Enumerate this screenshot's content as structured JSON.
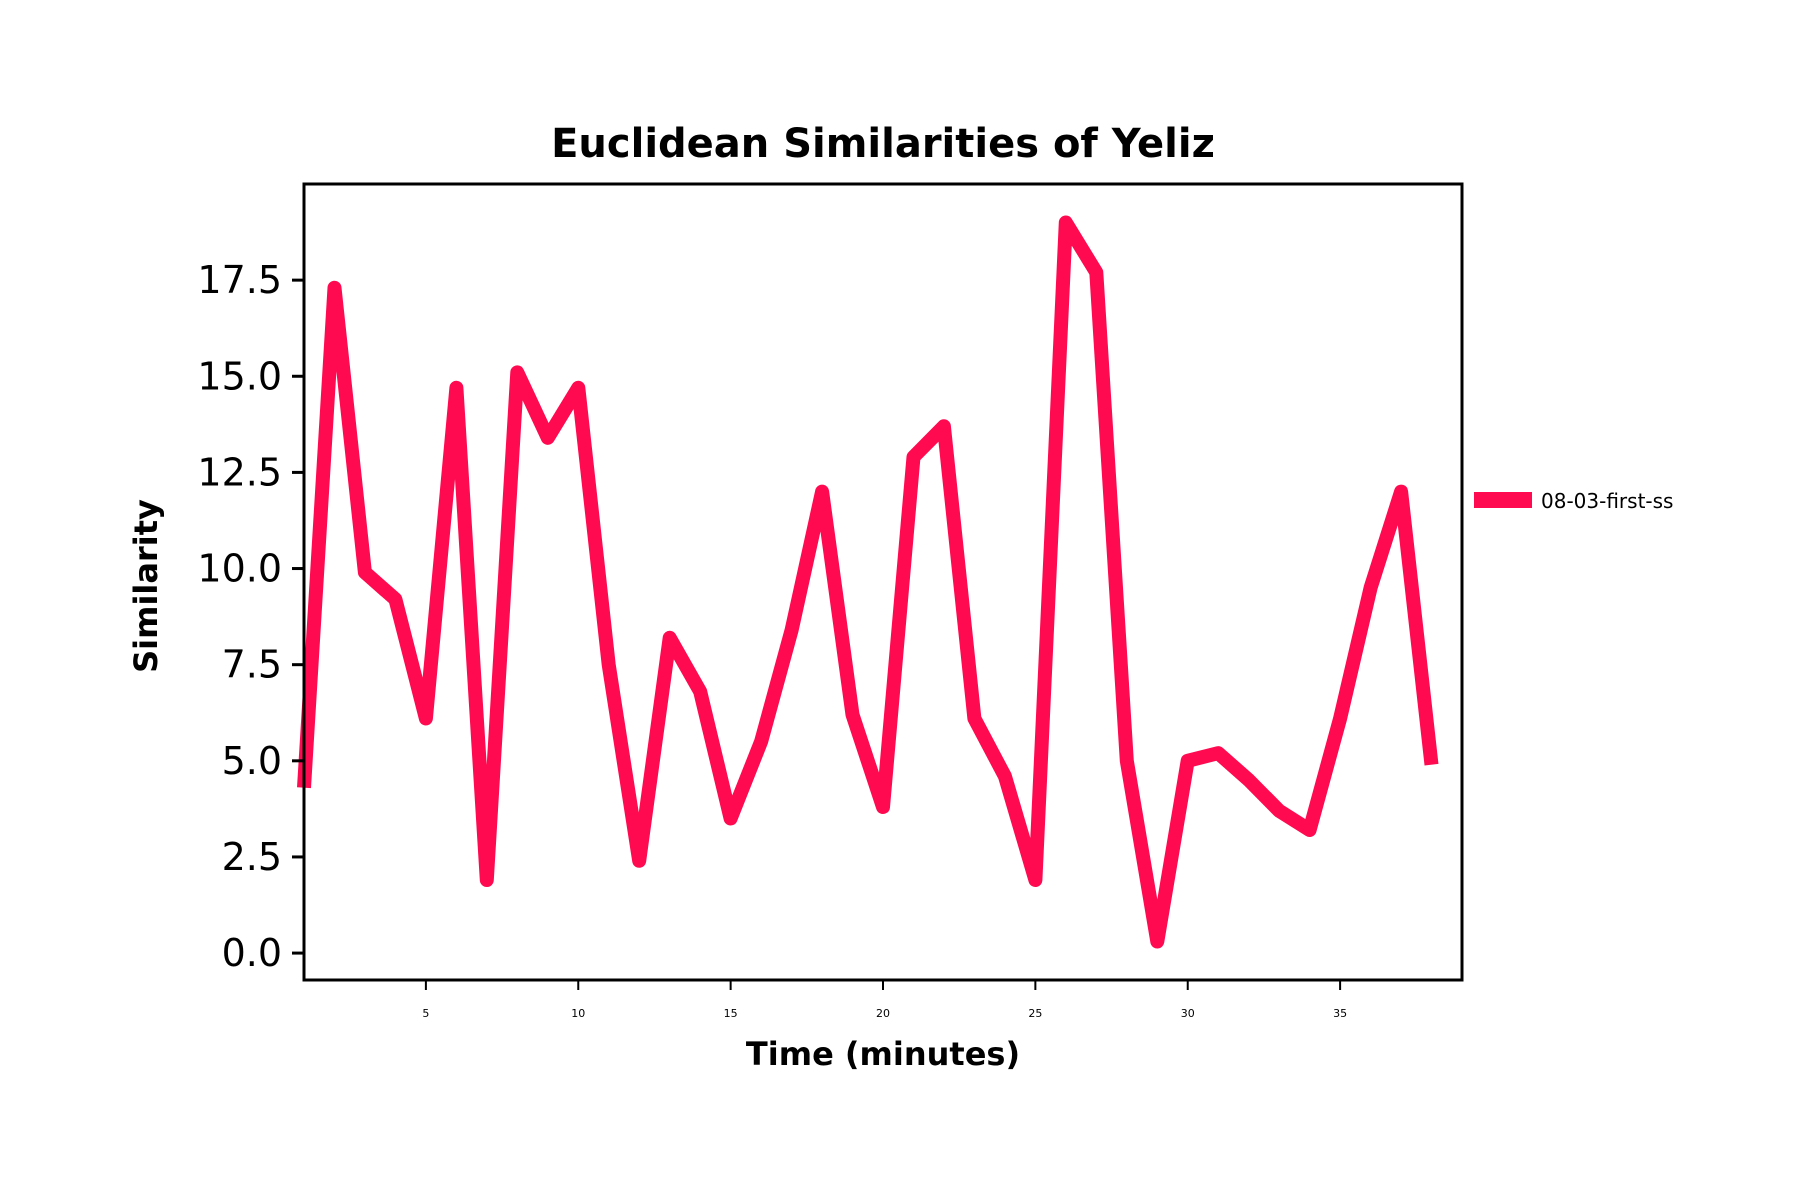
{
  "chart_data": {
    "type": "line",
    "title": "Euclidean Similarities of Yeliz",
    "xlabel": "Time (minutes)",
    "ylabel": "Similarity",
    "xlim": [
      1,
      39
    ],
    "ylim": [
      -0.7,
      20
    ],
    "xticks": [
      5,
      10,
      15,
      20,
      25,
      30,
      35
    ],
    "yticks": [
      "0.0",
      "2.5",
      "5.0",
      "7.5",
      "10.0",
      "12.5",
      "15.0",
      "17.5"
    ],
    "grid": false,
    "legend_position": "right",
    "colors": {
      "series": "#ff0a50"
    },
    "series": [
      {
        "name": "08-03-first-ss",
        "x": [
          1,
          2,
          3,
          4,
          5,
          6,
          7,
          8,
          9,
          10,
          11,
          12,
          13,
          14,
          15,
          16,
          17,
          18,
          19,
          20,
          21,
          22,
          23,
          24,
          25,
          26,
          27,
          28,
          29,
          30,
          31,
          32,
          33,
          34,
          35,
          36,
          37,
          38
        ],
        "values": [
          4.3,
          17.3,
          9.9,
          9.2,
          6.1,
          14.7,
          1.9,
          15.1,
          13.4,
          14.7,
          7.5,
          2.4,
          8.2,
          6.8,
          3.5,
          5.5,
          8.4,
          12.0,
          6.2,
          3.8,
          12.9,
          13.7,
          6.1,
          4.6,
          1.9,
          19.0,
          17.7,
          5.0,
          0.3,
          5.0,
          5.2,
          4.5,
          3.7,
          3.2,
          6.1,
          9.5,
          12.0,
          4.9
        ]
      }
    ]
  }
}
